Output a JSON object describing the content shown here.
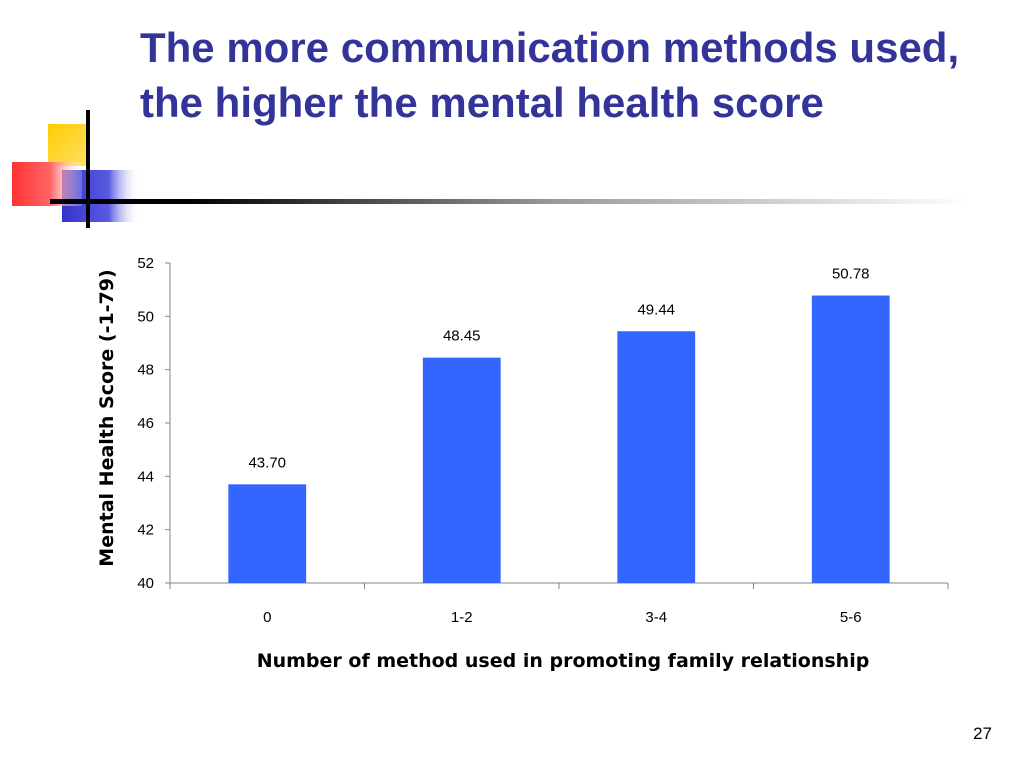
{
  "slide": {
    "title": "The more communication methods used, the higher the mental health score",
    "page_number": "27"
  },
  "colors": {
    "title": "#333399",
    "bar": "#3366ff",
    "deco_yellow": "#ffcc00",
    "deco_blue": "#3333cc",
    "deco_red": "#ff3333"
  },
  "chart_data": {
    "type": "bar",
    "categories": [
      "0",
      "1-2",
      "3-4",
      "5-6"
    ],
    "values": [
      43.7,
      48.45,
      49.44,
      50.78
    ],
    "data_labels": [
      "43.70",
      "48.45",
      "49.44",
      "50.78"
    ],
    "xlabel": "Number of method used in promoting family relationship",
    "ylabel": "Mental Health Score (-1-79)",
    "ylim": [
      40,
      52
    ],
    "yticks": [
      40,
      42,
      44,
      46,
      48,
      50,
      52
    ],
    "grid": false,
    "legend": "none"
  }
}
